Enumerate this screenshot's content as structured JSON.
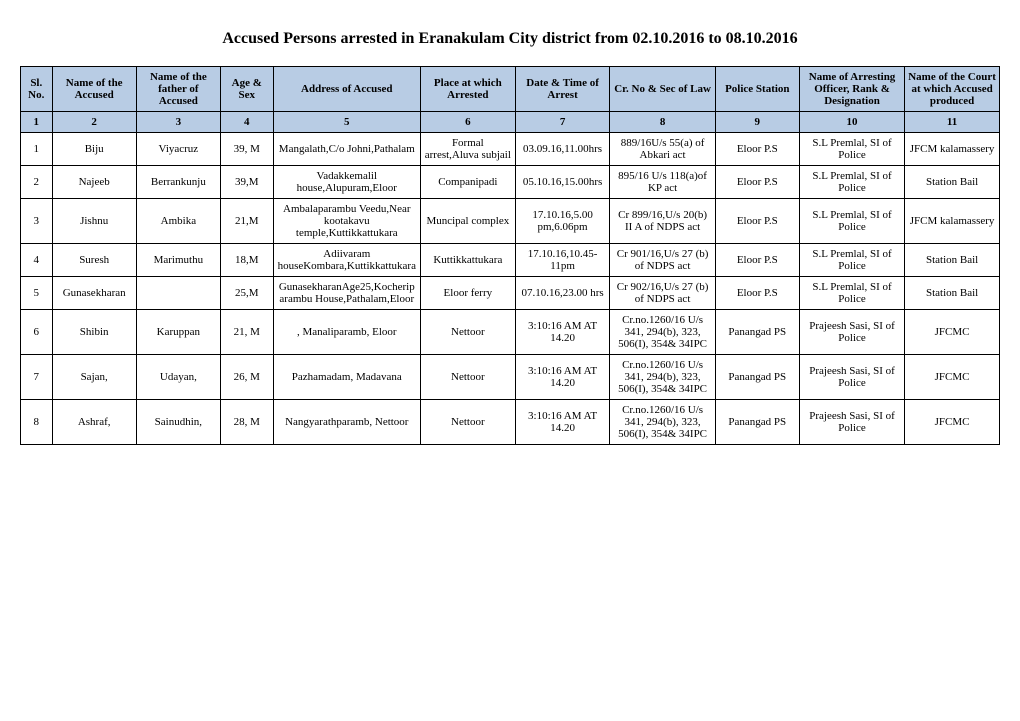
{
  "title": "Accused Persons arrested in   Eranakulam City   district from    02.10.2016 to 08.10.2016",
  "headers": [
    "Sl. No.",
    "Name of the Accused",
    "Name of the father of Accused",
    "Age & Sex",
    "Address of Accused",
    "Place at which Arrested",
    "Date & Time of Arrest",
    "Cr. No & Sec of Law",
    "Police Station",
    "Name of Arresting Officer, Rank & Designation",
    "Name of the Court at which Accused produced"
  ],
  "colnums": [
    "1",
    "2",
    "3",
    "4",
    "5",
    "6",
    "7",
    "8",
    "9",
    "10",
    "11"
  ],
  "rows": [
    {
      "c": [
        "1",
        "Biju",
        "Viyacruz",
        "39, M",
        "Mangalath,C/o Johni,Pathalam",
        "Formal arrest,Aluva subjail",
        "03.09.16,11.00hrs",
        "889/16U/s 55(a) of Abkari act",
        "Eloor P.S",
        "S.L Premlal, SI of Police",
        "JFCM kalamassery"
      ]
    },
    {
      "c": [
        "2",
        "Najeeb",
        "Berrankunju",
        "39,M",
        "Vadakkemalil house,Alupuram,Eloor",
        "Companipadi",
        "05.10.16,15.00hrs",
        "895/16 U/s 118(a)of KP act",
        "Eloor P.S",
        "S.L Premlal, SI of Police",
        "Station Bail"
      ]
    },
    {
      "c": [
        "3",
        "Jishnu",
        "Ambika",
        "21,M",
        "Ambalaparambu Veedu,Near kootakavu temple,Kuttikkattukara",
        "Muncipal complex",
        "17.10.16,5.00 pm,6.06pm",
        "Cr 899/16,U/s 20(b) II A of NDPS act",
        "Eloor P.S",
        "S.L Premlal, SI of Police",
        "JFCM kalamassery"
      ]
    },
    {
      "c": [
        "4",
        "Suresh",
        "Marimuthu",
        "18,M",
        "Adiivaram houseKombara,Kuttikkattukara",
        "Kuttikkattukara",
        "17.10.16,10.45-11pm",
        "Cr 901/16,U/s 27 (b) of NDPS act",
        "Eloor P.S",
        "S.L Premlal, SI of Police",
        "Station Bail"
      ]
    },
    {
      "c": [
        "5",
        "Gunasekharan",
        "",
        "25,M",
        "GunasekharanAge25,Kocheriparambu House,Pathalam,Eloor",
        "Eloor ferry",
        "07.10.16,23.00 hrs",
        "Cr 902/16,U/s 27 (b) of NDPS act",
        "Eloor P.S",
        "S.L Premlal, SI of Police",
        "Station Bail"
      ]
    },
    {
      "c": [
        "6",
        "Shibin",
        "Karuppan",
        "21, M",
        ", Manaliparamb, Eloor",
        "Nettoor",
        "3:10:16 AM AT 14.20",
        "Cr.no.1260/16 U/s 341, 294(b), 323, 506(I), 354& 34IPC",
        "Panangad PS",
        "Prajeesh Sasi, SI of Police",
        "JFCMC"
      ]
    },
    {
      "c": [
        "7",
        "Sajan,",
        "Udayan,",
        "26, M",
        "Pazhamadam, Madavana",
        "Nettoor",
        "3:10:16 AM AT 14.20",
        "Cr.no.1260/16 U/s 341, 294(b), 323, 506(I), 354& 34IPC",
        "Panangad PS",
        "Prajeesh Sasi, SI of Police",
        "JFCMC"
      ]
    },
    {
      "c": [
        "8",
        "Ashraf,",
        "Sainudhin,",
        "28, M",
        "Nangyarathparamb, Nettoor",
        "Nettoor",
        "3:10:16 AM AT 14.20",
        "Cr.no.1260/16 U/s 341, 294(b), 323, 506(I), 354& 34IPC",
        "Panangad PS",
        "Prajeesh Sasi, SI of Police",
        "JFCMC"
      ]
    }
  ],
  "style": {
    "header_bg": "#b8cce4",
    "border_color": "#000000",
    "font_family": "Georgia",
    "title_fontsize": 16,
    "cell_fontsize": 11
  }
}
